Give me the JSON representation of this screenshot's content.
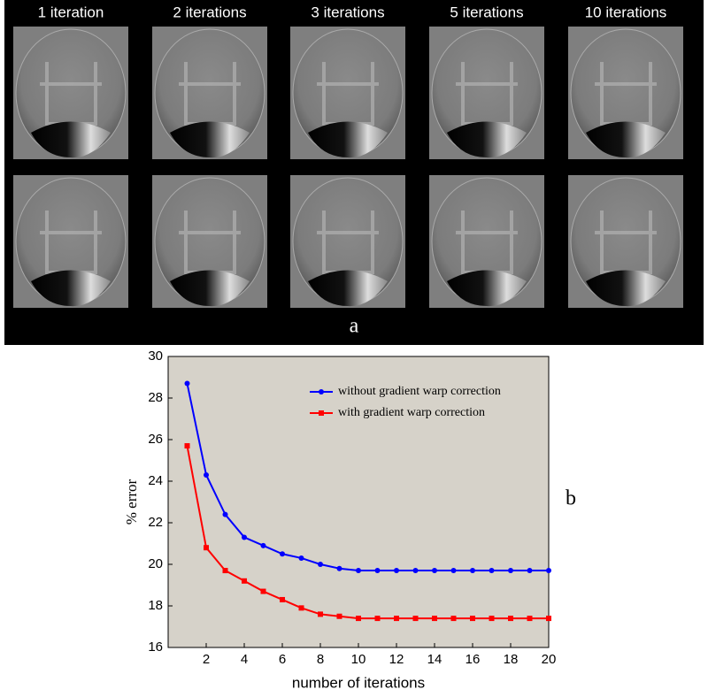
{
  "panel_a": {
    "column_titles": [
      "1 iteration",
      "2 iterations",
      "3 iterations",
      "5 iterations",
      "10 iterations"
    ],
    "label": "a"
  },
  "chart_data": {
    "type": "line",
    "panel_label": "b",
    "x_label": "number of iterations",
    "y_label": "% error",
    "x": [
      1,
      2,
      3,
      4,
      5,
      6,
      7,
      8,
      9,
      10,
      11,
      12,
      13,
      14,
      15,
      16,
      17,
      18,
      19,
      20
    ],
    "series": [
      {
        "name": "without gradient warp correction",
        "color": "#0000ff",
        "marker": "circle",
        "values": [
          28.7,
          24.3,
          22.4,
          21.3,
          20.9,
          20.5,
          20.3,
          20.0,
          19.8,
          19.7,
          19.7,
          19.7,
          19.7,
          19.7,
          19.7,
          19.7,
          19.7,
          19.7,
          19.7,
          19.7
        ]
      },
      {
        "name": "with gradient warp correction",
        "color": "#ff0000",
        "marker": "square",
        "values": [
          25.7,
          20.8,
          19.7,
          19.2,
          18.7,
          18.3,
          17.9,
          17.6,
          17.5,
          17.4,
          17.4,
          17.4,
          17.4,
          17.4,
          17.4,
          17.4,
          17.4,
          17.4,
          17.4,
          17.4
        ]
      }
    ],
    "xlim": [
      0,
      20
    ],
    "ylim": [
      16,
      30
    ],
    "xticks": [
      2,
      4,
      6,
      8,
      10,
      12,
      14,
      16,
      18,
      20
    ],
    "yticks": [
      16,
      18,
      20,
      22,
      24,
      26,
      28,
      30
    ],
    "legend": "upper right",
    "background": "#d6d2c9"
  }
}
